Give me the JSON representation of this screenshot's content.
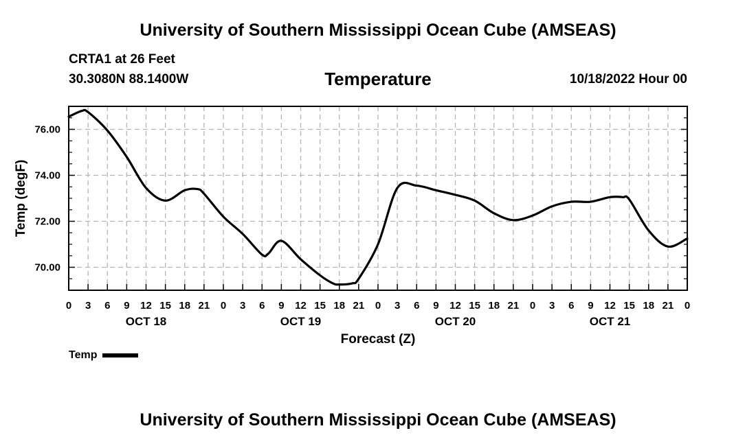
{
  "header": {
    "title_top": "University of Southern Mississippi Ocean Cube (AMSEAS)",
    "station": "CRTA1 at 26 Feet",
    "coords": "30.3080N  88.1400W",
    "chart_title": "Temperature",
    "issued": "10/18/2022 Hour 00",
    "title_bottom": "University of Southern Mississippi Ocean Cube (AMSEAS)"
  },
  "legend": {
    "label": "Temp"
  },
  "chart_data": {
    "type": "line",
    "title": "Temperature",
    "xlabel": "Forecast (Z)",
    "ylabel": "Temp (degF)",
    "xlim": [
      0,
      96
    ],
    "ylim": [
      69.0,
      77.0
    ],
    "grid": true,
    "x_tick_labels": [
      "0",
      "3",
      "6",
      "9",
      "12",
      "15",
      "18",
      "21",
      "0",
      "3",
      "6",
      "9",
      "12",
      "15",
      "18",
      "21",
      "0",
      "3",
      "6",
      "9",
      "12",
      "15",
      "18",
      "21",
      "0",
      "3",
      "6",
      "9",
      "12",
      "15",
      "18",
      "21",
      "0"
    ],
    "y_ticks": [
      70.0,
      72.0,
      74.0,
      76.0
    ],
    "y_tick_labels": [
      "70.00",
      "72.00",
      "74.00",
      "76.00"
    ],
    "day_labels": [
      {
        "label": "OCT 18",
        "hour": 12
      },
      {
        "label": "OCT 19",
        "hour": 36
      },
      {
        "label": "OCT 20",
        "hour": 60
      },
      {
        "label": "OCT 21",
        "hour": 84
      }
    ],
    "series": [
      {
        "name": "Temp",
        "color": "#000000",
        "x": [
          0,
          2,
          3,
          6,
          9,
          12,
          15,
          18,
          20,
          21,
          24,
          27,
          30,
          31,
          33,
          36,
          39,
          41,
          42,
          44,
          45,
          48,
          51,
          54,
          57,
          60,
          63,
          66,
          69,
          72,
          75,
          78,
          81,
          84,
          86,
          87,
          90,
          93,
          96
        ],
        "y": [
          76.55,
          76.8,
          76.75,
          75.95,
          74.8,
          73.45,
          72.9,
          73.35,
          73.4,
          73.2,
          72.2,
          71.45,
          70.55,
          70.6,
          71.15,
          70.35,
          69.65,
          69.3,
          69.25,
          69.3,
          69.5,
          71.0,
          73.45,
          73.55,
          73.35,
          73.15,
          72.9,
          72.35,
          72.05,
          72.25,
          72.65,
          72.85,
          72.85,
          73.05,
          73.05,
          72.95,
          71.6,
          70.9,
          71.25
        ]
      }
    ]
  }
}
